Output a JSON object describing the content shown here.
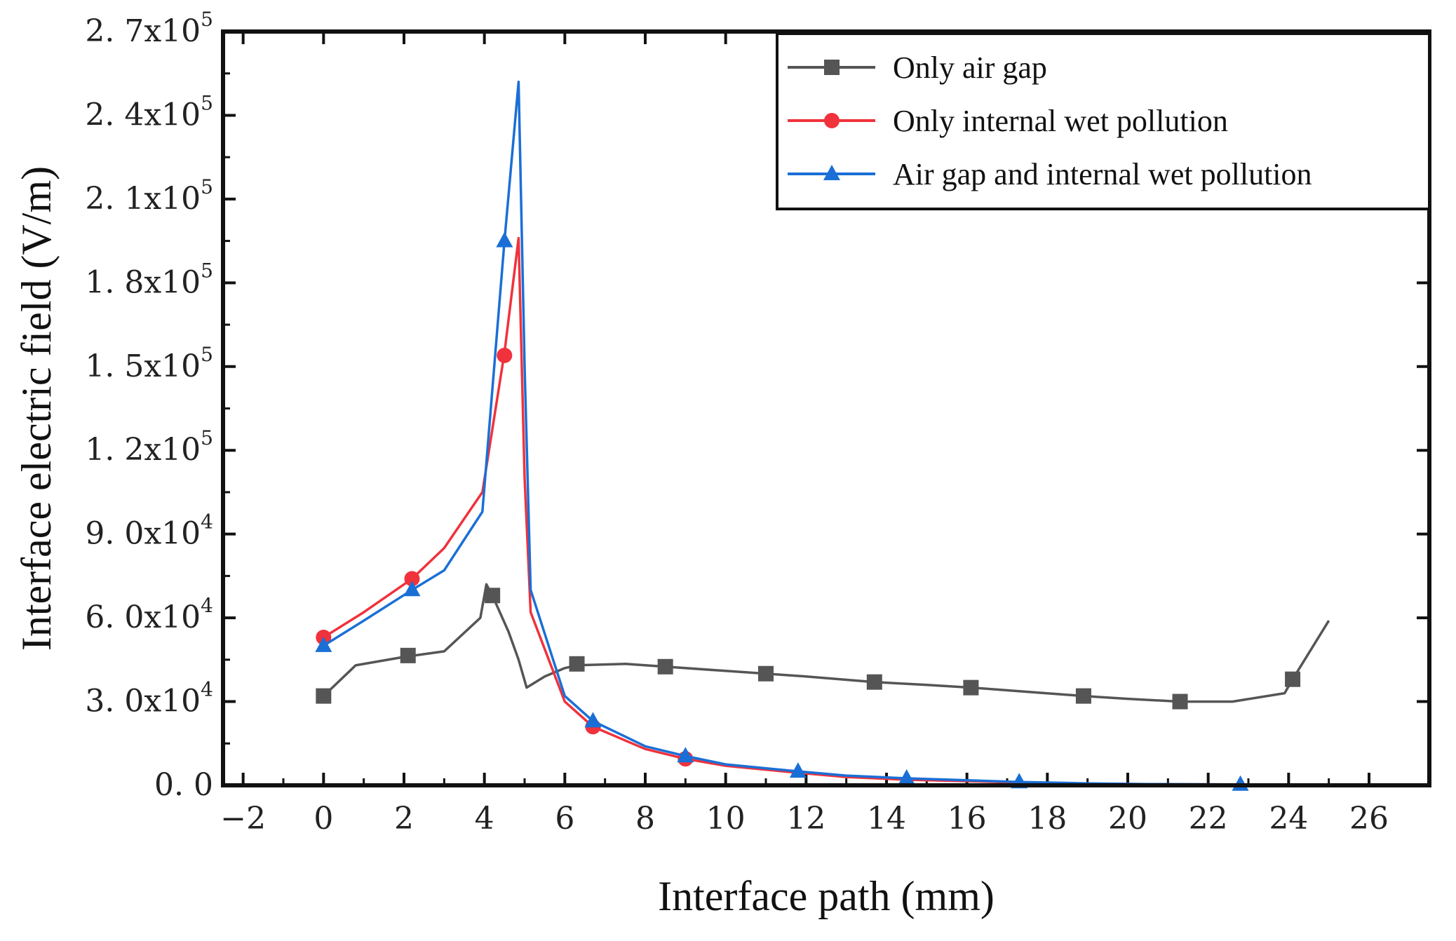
{
  "chart_data": {
    "type": "line",
    "title": "",
    "xlabel": "Interface path (mm)",
    "ylabel": "Interface electric field (V/m)",
    "xlim": [
      -2.5,
      27.5
    ],
    "ylim": [
      0,
      270000
    ],
    "xticks": [
      -2,
      0,
      2,
      4,
      6,
      8,
      10,
      12,
      14,
      16,
      18,
      20,
      22,
      24,
      26
    ],
    "xtick_labels": [
      "−2",
      "0",
      "2",
      "4",
      "6",
      "8",
      "10",
      "12",
      "14",
      "16",
      "18",
      "20",
      "22",
      "24",
      "26"
    ],
    "yticks": [
      {
        "value": 0,
        "mantissa": "0. 0",
        "exp": ""
      },
      {
        "value": 30000,
        "mantissa": "3. 0x10",
        "exp": "4"
      },
      {
        "value": 60000,
        "mantissa": "6. 0x10",
        "exp": "4"
      },
      {
        "value": 90000,
        "mantissa": "9. 0x10",
        "exp": "4"
      },
      {
        "value": 120000,
        "mantissa": "1. 2x10",
        "exp": "5"
      },
      {
        "value": 150000,
        "mantissa": "1. 5x10",
        "exp": "5"
      },
      {
        "value": 180000,
        "mantissa": "1. 8x10",
        "exp": "5"
      },
      {
        "value": 210000,
        "mantissa": "2. 1x10",
        "exp": "5"
      },
      {
        "value": 240000,
        "mantissa": "2. 4x10",
        "exp": "5"
      },
      {
        "value": 270000,
        "mantissa": "2. 7x10",
        "exp": "5"
      }
    ],
    "legend_position": "top-right",
    "series": [
      {
        "name": "Only air gap",
        "color": "#555555",
        "marker": "square",
        "x": [
          0,
          0.8,
          2.0,
          3.0,
          3.9,
          4.05,
          4.2,
          4.6,
          4.85,
          5.05,
          5.5,
          6.0,
          6.3,
          7.5,
          8.5,
          10,
          11,
          12,
          13.7,
          15,
          16.1,
          17.5,
          18.9,
          20,
          21.3,
          22.6,
          23.9,
          24.1,
          25
        ],
        "y": [
          32000,
          43000,
          46000,
          48000,
          60000,
          72000,
          68000,
          55000,
          45000,
          35000,
          39000,
          42000,
          43000,
          43500,
          42500,
          41000,
          40000,
          39000,
          37000,
          36000,
          35000,
          33500,
          32000,
          31000,
          30000,
          30000,
          33000,
          38000,
          59000
        ],
        "marker_x": [
          0,
          2.1,
          4.2,
          6.3,
          8.5,
          11,
          13.7,
          16.1,
          18.9,
          21.3,
          24.1
        ],
        "marker_y": [
          32000,
          46500,
          68000,
          43500,
          42500,
          40000,
          37000,
          35000,
          32000,
          30000,
          38000
        ]
      },
      {
        "name": "Only internal wet pollution",
        "color": "#f0323c",
        "marker": "circle",
        "x": [
          0,
          1.0,
          2.2,
          3.0,
          3.95,
          4.5,
          4.85,
          5.0,
          5.15,
          6.0,
          6.7,
          8,
          9.0,
          10,
          11.8,
          13,
          14.5,
          16,
          17.3,
          19,
          20.5,
          22.8
        ],
        "y": [
          53000,
          62000,
          74000,
          85000,
          105000,
          155000,
          196000,
          110000,
          62000,
          30000,
          21000,
          13000,
          9500,
          7000,
          4500,
          3000,
          2000,
          1500,
          1000,
          600,
          400,
          300
        ],
        "marker_x": [
          0,
          2.2,
          4.5,
          6.7,
          9.0
        ],
        "marker_y": [
          53000,
          74000,
          154000,
          21000,
          9500
        ]
      },
      {
        "name": "Air gap and internal wet pollution",
        "color": "#1a6fd6",
        "marker": "triangle",
        "x": [
          0,
          1.0,
          2.2,
          3.0,
          3.95,
          4.5,
          4.85,
          5.0,
          5.15,
          6.0,
          6.7,
          8,
          9.0,
          10,
          11.8,
          13,
          14.5,
          16,
          17.3,
          19,
          20.5,
          22.8
        ],
        "y": [
          50000,
          59000,
          70000,
          77000,
          98000,
          195000,
          252000,
          150000,
          70000,
          32000,
          23000,
          14000,
          10500,
          7500,
          5000,
          3500,
          2500,
          1800,
          1200,
          700,
          450,
          300
        ],
        "marker_x": [
          0,
          2.2,
          4.5,
          6.7,
          9.0,
          11.8,
          14.5,
          17.3,
          22.8
        ],
        "marker_y": [
          50000,
          70000,
          195000,
          23000,
          10500,
          5000,
          2500,
          1200,
          300
        ]
      }
    ]
  }
}
